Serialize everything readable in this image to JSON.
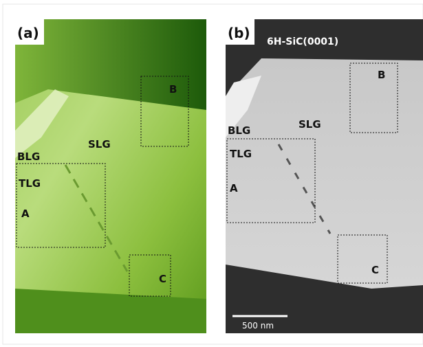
{
  "panels": [
    {
      "label": "(a)",
      "annotations": {
        "slg": "SLG",
        "blg": "BLG",
        "tlg": "TLG",
        "a": "A",
        "b": "B",
        "c": "C"
      }
    },
    {
      "label": "(b)",
      "title": "6H-SiC(0001)",
      "annotations": {
        "slg": "SLG",
        "blg": "BLG",
        "tlg": "TLG",
        "a": "A",
        "b": "B",
        "c": "C"
      },
      "scale_bar": "500 nm"
    }
  ]
}
